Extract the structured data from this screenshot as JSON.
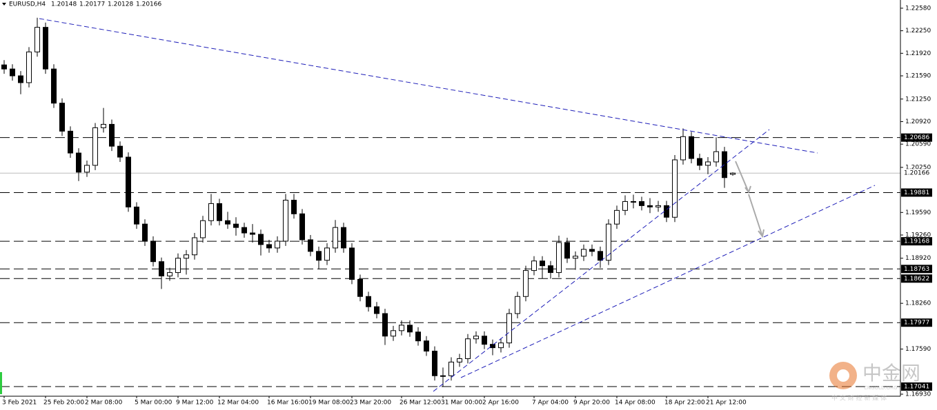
{
  "chart_data": {
    "type": "candlestick",
    "header": {
      "symbol": "EURUSD,H4",
      "ohlc": [
        1.20148,
        1.20177,
        1.20128,
        1.20166
      ]
    },
    "categories": [
      "3 Feb 2021",
      null,
      null,
      null,
      null,
      "25 Feb 20:00",
      null,
      null,
      null,
      null,
      "2 Mar 08:00",
      null,
      null,
      null,
      null,
      null,
      "5 Mar 00:00",
      null,
      null,
      null,
      null,
      "9 Mar 12:00",
      null,
      null,
      null,
      null,
      "12 Mar 04:00",
      null,
      null,
      null,
      null,
      null,
      "16 Mar 16:00",
      null,
      null,
      null,
      null,
      "19 Mar 08:00",
      null,
      null,
      null,
      null,
      "23 Mar 20:00",
      null,
      null,
      null,
      null,
      null,
      "26 Mar 12:00",
      null,
      null,
      null,
      null,
      "31 Mar 00:00",
      null,
      null,
      null,
      null,
      "2 Apr 16:00",
      null,
      null,
      null,
      null,
      null,
      "7 Apr 04:00",
      null,
      null,
      null,
      null,
      "9 Apr 20:00",
      null,
      null,
      null,
      null,
      "14 Apr 08:00",
      null,
      null,
      null,
      null,
      null,
      "18 Apr 22:00",
      null,
      null,
      null,
      null,
      "21 Apr 12:00",
      null,
      null,
      null
    ],
    "open": [
      1.2175,
      1.2169,
      1.2159,
      1.2149,
      1.2194,
      1.223,
      1.2169,
      1.2119,
      1.2078,
      1.2046,
      1.2018,
      1.2028,
      1.2083,
      1.2088,
      1.2056,
      1.204,
      1.1967,
      1.1942,
      1.1917,
      1.1887,
      1.1866,
      1.1871,
      1.1892,
      1.1897,
      1.1922,
      1.1947,
      1.1972,
      1.1947,
      1.1942,
      1.1937,
      1.1929,
      1.1927,
      1.1912,
      1.1907,
      1.1917,
      1.1977,
      1.1957,
      1.1919,
      1.1902,
      1.1889,
      1.1907,
      1.1937,
      1.1907,
      1.1861,
      1.1836,
      1.1821,
      1.1811,
      1.1778,
      1.1786,
      1.1794,
      1.1784,
      1.1771,
      1.1756,
      1.172,
      1.172,
      1.174,
      1.1745,
      1.1774,
      1.1778,
      1.1766,
      1.1761,
      1.1768,
      1.1811,
      1.1836,
      1.1874,
      1.1888,
      1.1881,
      1.1871,
      1.1915,
      1.1892,
      1.1895,
      1.1905,
      1.1902,
      1.1889,
      1.1942,
      1.1962,
      1.1975,
      1.1975,
      1.1969,
      1.1967,
      1.1969,
      1.1952,
      1.2036,
      1.207,
      1.2038,
      1.2028,
      1.2033,
      1.2048,
      1.20148
    ],
    "high": [
      1.2182,
      1.2176,
      1.2166,
      1.2201,
      1.2244,
      1.2237,
      1.2176,
      1.2126,
      1.2085,
      1.2053,
      1.2035,
      1.209,
      1.2112,
      1.2095,
      1.2063,
      1.2047,
      1.1974,
      1.1949,
      1.1924,
      1.1893,
      1.1878,
      1.1899,
      1.1904,
      1.1929,
      1.1954,
      1.1986,
      1.1979,
      1.196,
      1.1952,
      1.1944,
      1.1942,
      1.1934,
      1.1919,
      1.1924,
      1.1986,
      1.1986,
      1.1964,
      1.1926,
      1.1909,
      1.1914,
      1.1948,
      1.1944,
      1.1914,
      1.1868,
      1.1843,
      1.1828,
      1.1818,
      1.1793,
      1.1801,
      1.1801,
      1.1791,
      1.1778,
      1.1763,
      1.1732,
      1.1747,
      1.1752,
      1.1781,
      1.1785,
      1.1785,
      1.1773,
      1.1775,
      1.1818,
      1.1843,
      1.1881,
      1.1895,
      1.1895,
      1.1888,
      1.1925,
      1.1922,
      1.1902,
      1.1912,
      1.1912,
      1.1909,
      1.1949,
      1.1969,
      1.1984,
      1.1985,
      1.1982,
      1.198,
      1.1976,
      1.1976,
      1.2043,
      1.2082,
      1.2077,
      1.2045,
      1.204,
      1.2069,
      1.2055,
      1.20177
    ],
    "low": [
      1.2162,
      1.2152,
      1.2132,
      1.2142,
      1.2187,
      1.2162,
      1.2112,
      1.2071,
      1.2039,
      1.2005,
      1.2011,
      1.2021,
      1.2076,
      1.2049,
      1.2033,
      1.196,
      1.1935,
      1.191,
      1.188,
      1.1847,
      1.1859,
      1.1864,
      1.1868,
      1.189,
      1.1915,
      1.194,
      1.194,
      1.1935,
      1.1925,
      1.1922,
      1.1915,
      1.1896,
      1.19,
      1.19,
      1.191,
      1.195,
      1.1912,
      1.1895,
      1.1876,
      1.1882,
      1.19,
      1.19,
      1.1854,
      1.1829,
      1.1814,
      1.1804,
      1.1765,
      1.1771,
      1.1779,
      1.1777,
      1.1764,
      1.1749,
      1.1713,
      1.1704,
      1.1713,
      1.1733,
      1.1738,
      1.1767,
      1.1759,
      1.175,
      1.1754,
      1.1761,
      1.1804,
      1.1829,
      1.1867,
      1.1862,
      1.1862,
      1.1864,
      1.1885,
      1.1875,
      1.1888,
      1.1895,
      1.1878,
      1.1882,
      1.1935,
      1.1955,
      1.1965,
      1.1962,
      1.1958,
      1.196,
      1.1945,
      1.1945,
      1.2029,
      1.2031,
      1.2021,
      1.2015,
      1.2026,
      1.1995,
      1.20128
    ],
    "close": [
      1.2169,
      1.2159,
      1.2149,
      1.2194,
      1.223,
      1.2169,
      1.2119,
      1.2078,
      1.2046,
      1.2018,
      1.2028,
      1.2083,
      1.2088,
      1.2056,
      1.204,
      1.1967,
      1.1942,
      1.1917,
      1.1887,
      1.1866,
      1.1871,
      1.1892,
      1.1897,
      1.1922,
      1.1947,
      1.1972,
      1.1947,
      1.1942,
      1.1937,
      1.1929,
      1.1927,
      1.1912,
      1.1907,
      1.1917,
      1.1977,
      1.1957,
      1.1919,
      1.1902,
      1.1889,
      1.1907,
      1.1937,
      1.1907,
      1.1861,
      1.1836,
      1.1821,
      1.1811,
      1.1778,
      1.1786,
      1.1794,
      1.1784,
      1.1771,
      1.1756,
      1.172,
      1.172,
      1.174,
      1.1745,
      1.1774,
      1.1778,
      1.1766,
      1.1761,
      1.1768,
      1.1811,
      1.1836,
      1.1874,
      1.1888,
      1.1881,
      1.1871,
      1.1915,
      1.1892,
      1.1895,
      1.1905,
      1.1902,
      1.1889,
      1.1942,
      1.1962,
      1.1975,
      1.1975,
      1.1969,
      1.1967,
      1.1969,
      1.1952,
      1.2036,
      1.207,
      1.2038,
      1.2028,
      1.2033,
      1.2048,
      1.201,
      1.20166
    ],
    "up_color": "#ffffff",
    "down_color": "#000000",
    "ylim": [
      1.169,
      1.227
    ],
    "yticks": [
      {
        "value": 1.2258,
        "label": "1.22580"
      },
      {
        "value": 1.2225,
        "label": "1.22250"
      },
      {
        "value": 1.2192,
        "label": "1.21920"
      },
      {
        "value": 1.2159,
        "label": "1.21590"
      },
      {
        "value": 1.2125,
        "label": "1.21250"
      },
      {
        "value": 1.2092,
        "label": "1.20920"
      },
      {
        "value": 1.2059,
        "label": "1.20590"
      },
      {
        "value": 1.2025,
        "label": "1.20250"
      },
      {
        "value": 1.1959,
        "label": "1.19590"
      },
      {
        "value": 1.1926,
        "label": "1.19260"
      },
      {
        "value": 1.1892,
        "label": "1.18920"
      },
      {
        "value": 1.1826,
        "label": "1.18260"
      },
      {
        "value": 1.1759,
        "label": "1.17590"
      },
      {
        "value": 1.1693,
        "label": "1.16930"
      }
    ],
    "levels": [
      1.20686,
      1.19881,
      1.19168,
      1.18763,
      1.18622,
      1.17977,
      1.17041
    ],
    "last_price": 1.20166,
    "watermark": {
      "name": "中金网",
      "site": "CNGOLD.ORG",
      "slogan": "中 文 财 经 新 媒 体"
    }
  }
}
